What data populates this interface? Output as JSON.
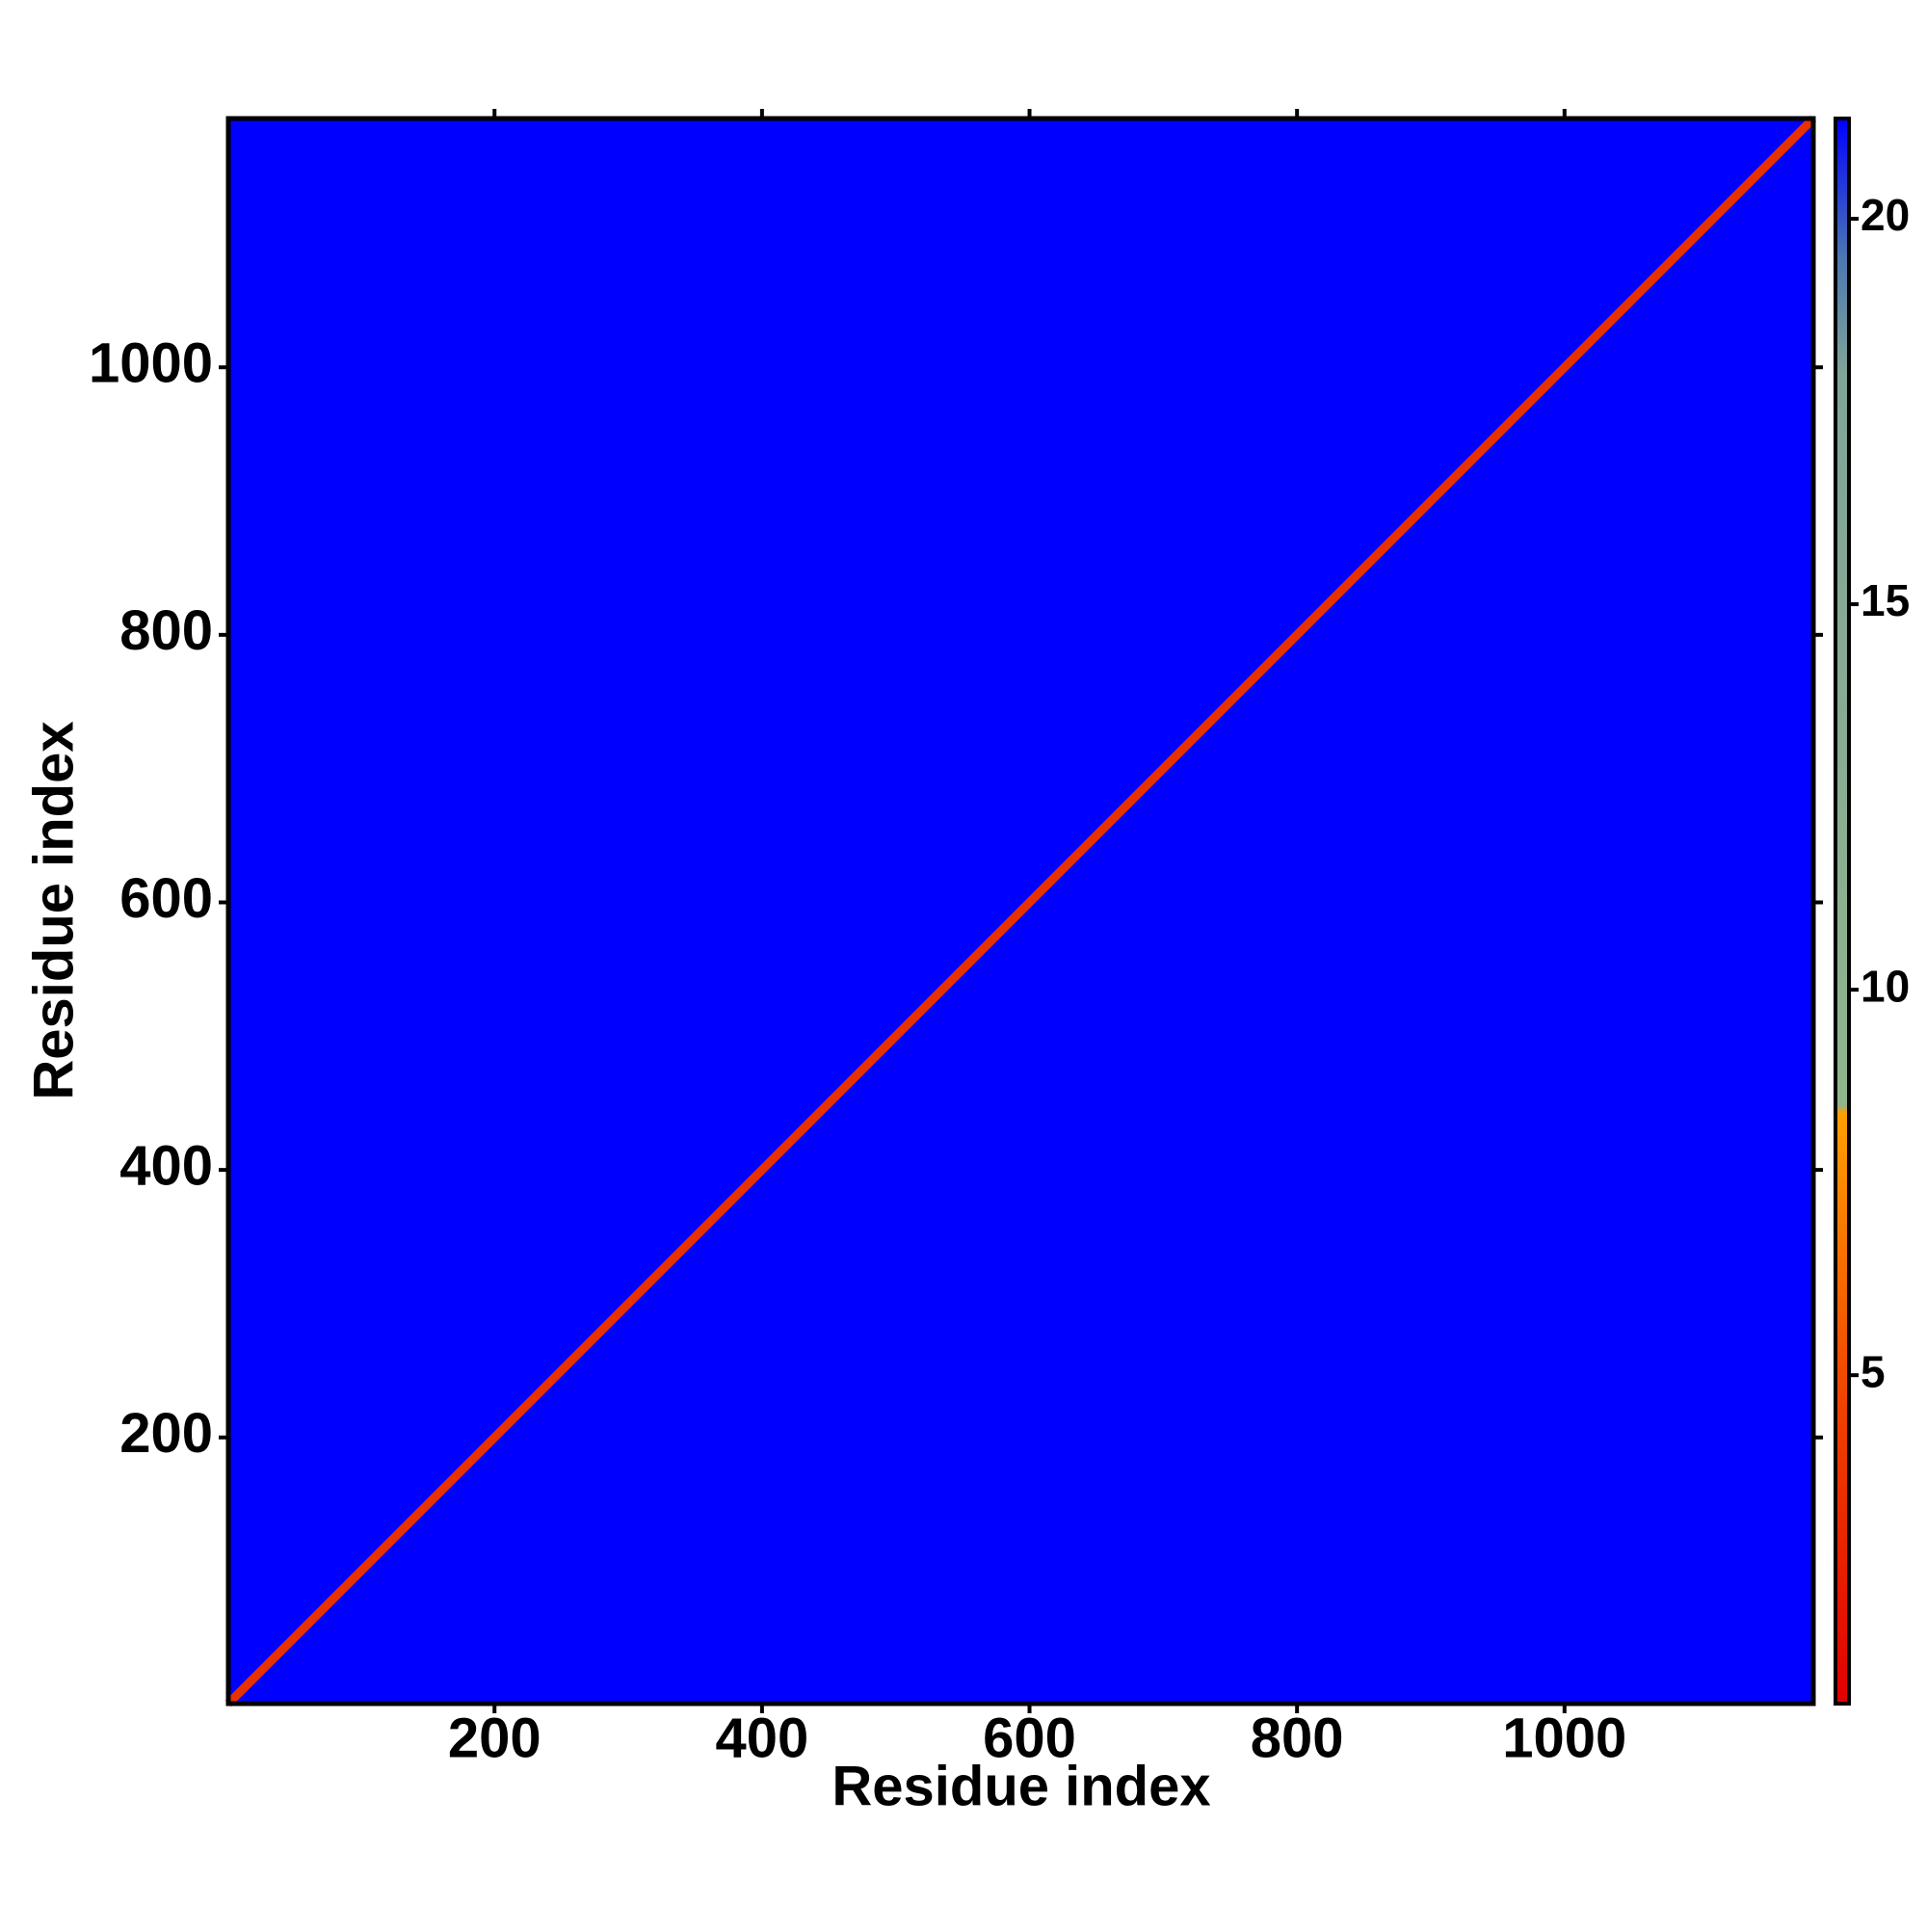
{
  "chart_data": {
    "type": "heatmap",
    "xlabel": "Residue index",
    "ylabel": "Residue index",
    "xlim": [
      1,
      1186
    ],
    "ylim": [
      1,
      1186
    ],
    "xticks": [
      200,
      400,
      600,
      800,
      1000
    ],
    "yticks": [
      200,
      400,
      600,
      800,
      1000
    ],
    "background_color": "#0000ff",
    "diagonal_color": "#e83000",
    "colorbar": {
      "lim": [
        0.74,
        21.3
      ],
      "ticks": [
        5,
        10,
        15,
        20
      ],
      "colorscale": [
        [
          0.74,
          "#e00000"
        ],
        [
          5,
          "#f04a00"
        ],
        [
          8.4,
          "#ffa000"
        ],
        [
          8.5,
          "#90b48c"
        ],
        [
          18,
          "#80a498"
        ],
        [
          19.5,
          "#4a78b0"
        ],
        [
          21.3,
          "#0000ff"
        ]
      ]
    }
  }
}
